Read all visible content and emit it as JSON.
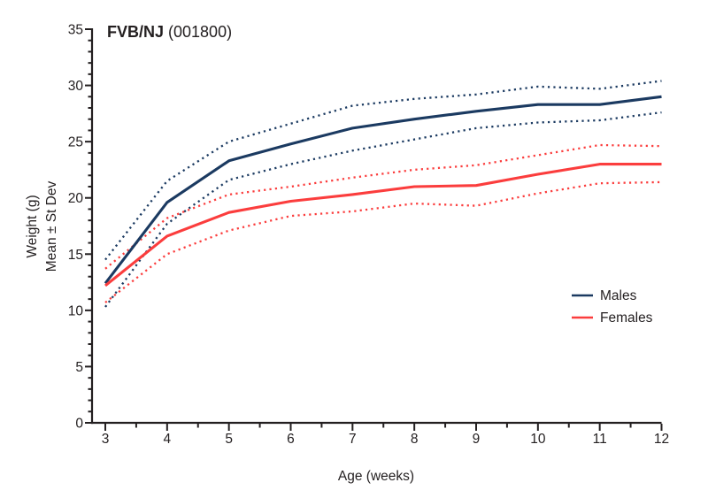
{
  "chart": {
    "title": {
      "strain": "FVB/NJ",
      "stock": " (001800)"
    },
    "y_axis": {
      "label_line1": "Weight (g)",
      "label_line2": "Mean ± St Dev",
      "tick_labels": [
        "0",
        "5",
        "10",
        "15",
        "20",
        "25",
        "30",
        "35"
      ]
    },
    "x_axis": {
      "label": "Age (weeks)",
      "tick_labels": [
        "3",
        "4",
        "5",
        "6",
        "7",
        "8",
        "9",
        "10",
        "11",
        "12"
      ]
    },
    "legend": [
      {
        "label": "Males",
        "color": "#1b3a61"
      },
      {
        "label": "Females",
        "color": "#fb3d3d"
      }
    ],
    "colors": {
      "males": "#1b3a61",
      "females": "#fb3d3d",
      "axis": "#231f20",
      "background": "#ffffff"
    }
  },
  "chart_data": {
    "type": "line",
    "title": "FVB/NJ (001800)",
    "xlabel": "Age (weeks)",
    "ylabel": "Weight (g), Mean ± St Dev",
    "x": [
      3,
      4,
      5,
      6,
      7,
      8,
      9,
      10,
      11,
      12
    ],
    "xlim": [
      3,
      12
    ],
    "ylim": [
      0,
      35
    ],
    "y_major_tick_step": 5,
    "y_minor_tick_step": 1,
    "x_major_tick_step": 1,
    "x_minor_tick_step": 0.5,
    "grid": false,
    "legend_position": "inside-right-middle",
    "series": [
      {
        "name": "Males mean",
        "group": "Males",
        "role": "mean",
        "style": "solid",
        "color": "#1b3a61",
        "values": [
          12.4,
          19.6,
          23.3,
          24.8,
          26.2,
          27.0,
          27.7,
          28.3,
          28.3,
          29.0
        ]
      },
      {
        "name": "Males mean +1 SD",
        "group": "Males",
        "role": "upper_sd",
        "style": "dotted",
        "color": "#1b3a61",
        "values": [
          14.5,
          21.5,
          25.0,
          26.6,
          28.2,
          28.8,
          29.2,
          29.9,
          29.7,
          30.4
        ]
      },
      {
        "name": "Males mean -1 SD",
        "group": "Males",
        "role": "lower_sd",
        "style": "dotted",
        "color": "#1b3a61",
        "values": [
          10.3,
          17.7,
          21.6,
          23.0,
          24.2,
          25.2,
          26.2,
          26.7,
          26.9,
          27.6
        ]
      },
      {
        "name": "Females mean",
        "group": "Females",
        "role": "mean",
        "style": "solid",
        "color": "#fb3d3d",
        "values": [
          12.2,
          16.6,
          18.7,
          19.7,
          20.3,
          21.0,
          21.1,
          22.1,
          23.0,
          23.0
        ]
      },
      {
        "name": "Females mean +1 SD",
        "group": "Females",
        "role": "upper_sd",
        "style": "dotted",
        "color": "#fb3d3d",
        "values": [
          13.7,
          18.2,
          20.3,
          21.0,
          21.8,
          22.5,
          22.9,
          23.8,
          24.7,
          24.6
        ]
      },
      {
        "name": "Females mean -1 SD",
        "group": "Females",
        "role": "lower_sd",
        "style": "dotted",
        "color": "#fb3d3d",
        "values": [
          10.7,
          15.0,
          17.1,
          18.4,
          18.8,
          19.5,
          19.3,
          20.4,
          21.3,
          21.4
        ]
      }
    ],
    "sd": {
      "Males": [
        2.1,
        1.9,
        1.7,
        1.8,
        2.0,
        1.8,
        1.5,
        1.6,
        1.4,
        1.4
      ],
      "Females": [
        1.5,
        1.6,
        1.6,
        1.3,
        1.5,
        1.5,
        1.8,
        1.7,
        1.7,
        1.6
      ]
    }
  }
}
